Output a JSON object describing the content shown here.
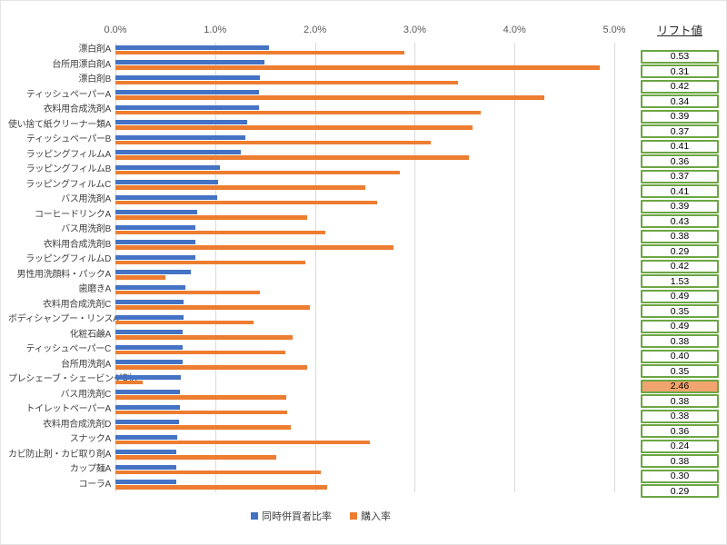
{
  "chart_data": {
    "type": "bar",
    "orientation": "horizontal",
    "title": "",
    "x_axis": {
      "ticks": [
        "0.0%",
        "1.0%",
        "2.0%",
        "3.0%",
        "4.0%",
        "5.0%"
      ],
      "min": 0,
      "max": 5,
      "unit": "%"
    },
    "grid": true,
    "legend_position": "bottom",
    "categories": [
      "漂白剤A",
      "台所用漂白剤A",
      "漂白剤B",
      "ティッシュペーパーA",
      "衣料用合成洗剤A",
      "使い捨て紙クリーナー類A",
      "ティッシュペーパーB",
      "ラッピングフィルムA",
      "ラッピングフィルムB",
      "ラッピングフィルムC",
      "バス用洗剤A",
      "コーヒードリンクA",
      "バス用洗剤B",
      "衣料用合成洗剤B",
      "ラッピングフィルムD",
      "男性用洗顔料・パックA",
      "歯磨きA",
      "衣料用合成洗剤C",
      "ボディシャンプー・リンスA",
      "化粧石鹸A",
      "ティッシュペーパーC",
      "台所用洗剤A",
      "プレシェーブ・シェービング剤A",
      "バス用洗剤C",
      "トイレットペーパーA",
      "衣料用合成洗剤D",
      "スナックA",
      "カビ防止剤・カビ取り剤A",
      "カップ麺A",
      "コーラA"
    ],
    "series": [
      {
        "name": "同時併買者比率",
        "color": "#4472C4",
        "values": [
          1.54,
          1.49,
          1.45,
          1.44,
          1.44,
          1.32,
          1.3,
          1.26,
          1.05,
          1.03,
          1.02,
          0.82,
          0.8,
          0.8,
          0.8,
          0.76,
          0.7,
          0.68,
          0.68,
          0.67,
          0.67,
          0.67,
          0.66,
          0.65,
          0.65,
          0.64,
          0.62,
          0.61,
          0.61,
          0.61
        ]
      },
      {
        "name": "購入率",
        "color": "#ED7D31",
        "values": [
          2.9,
          4.85,
          3.43,
          4.3,
          3.66,
          3.58,
          3.16,
          3.54,
          2.85,
          2.5,
          2.62,
          1.92,
          2.1,
          2.79,
          1.9,
          0.5,
          1.45,
          1.95,
          1.38,
          1.78,
          1.7,
          1.92,
          0.27,
          1.71,
          1.72,
          1.76,
          2.55,
          1.61,
          2.06,
          2.12
        ]
      }
    ],
    "gridline_color": "#D9D9D9"
  },
  "lift": {
    "header": "リフト値",
    "values": [
      "0.53",
      "0.31",
      "0.42",
      "0.34",
      "0.39",
      "0.37",
      "0.41",
      "0.36",
      "0.37",
      "0.41",
      "0.39",
      "0.43",
      "0.38",
      "0.29",
      "0.42",
      "1.53",
      "0.49",
      "0.35",
      "0.49",
      "0.38",
      "0.40",
      "0.35",
      "2.46",
      "0.38",
      "0.38",
      "0.36",
      "0.24",
      "0.38",
      "0.30",
      "0.29"
    ],
    "highlight_index": 22,
    "highlight_value": "2.46",
    "box_border_color": "#6CA644",
    "highlight_fill_color": "#F2A46F"
  }
}
